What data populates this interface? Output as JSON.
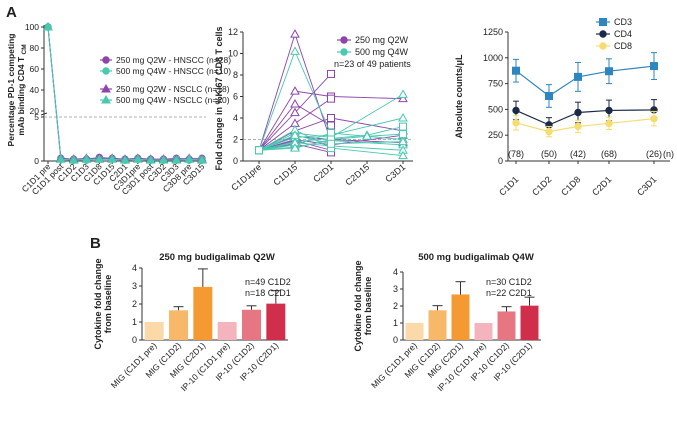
{
  "panel_labels": {
    "a": "A",
    "b": "B"
  },
  "chart_data": [
    {
      "id": "ro",
      "type": "line",
      "title": "",
      "ylabel": "Percentage PD-1 competing mAb binding CD4 T",
      "ylabel_sub": "CM",
      "ylim": [
        0,
        100
      ],
      "yticks": [
        0,
        5,
        20,
        40,
        60,
        80,
        100
      ],
      "reference_line": 5,
      "categories": [
        "C1D1 pre",
        "C1D1 post",
        "C1D2",
        "C1D3",
        "C1D8",
        "C1D15",
        "C2D1",
        "C3D1pre",
        "C3D1 post",
        "C3D2",
        "C3D3",
        "C3D8 pre",
        "C3D15"
      ],
      "series": [
        {
          "name": "250 mg Q2W - HNSCC (n=28)",
          "color": "#8e44ad",
          "marker": "circle",
          "values": [
            100,
            0.3,
            0.2,
            0.2,
            0.4,
            0.3,
            0.2,
            0.3,
            0.2,
            0.2,
            0.3,
            0.2,
            0.3
          ]
        },
        {
          "name": "500 mg Q4W - HNSCC (n=10)",
          "color": "#48c9b0",
          "marker": "circle",
          "values": [
            100,
            0.2,
            0.1,
            0.1,
            0.2,
            0.2,
            0.1,
            0.2,
            0.1,
            0.1,
            0.2,
            0.1,
            0.2
          ]
        },
        {
          "name": "250 mg Q2W - NSCLC (n=18)",
          "color": "#8e44ad",
          "marker": "triangle",
          "values": [
            100,
            0.3,
            0.2,
            0.3,
            0.3,
            0.3,
            0.2,
            0.3,
            0.2,
            0.2,
            0.2,
            0.3,
            0.2
          ]
        },
        {
          "name": "500 mg Q4W - NSCLC (n=20)",
          "color": "#48c9b0",
          "marker": "triangle",
          "values": [
            100,
            0.2,
            0.1,
            0.2,
            0.2,
            0.2,
            0.1,
            0.2,
            0.1,
            0.1,
            0.1,
            0.2,
            0.1
          ]
        }
      ]
    },
    {
      "id": "ki67",
      "type": "line",
      "ylabel": "Fold change in %Ki67 CD8 T cells",
      "ylim": [
        0,
        12
      ],
      "yticks": [
        0,
        2,
        4,
        6,
        8,
        10,
        12
      ],
      "reference_line": 2,
      "categories": [
        "C1D1pre",
        "C1D15",
        "C2D1",
        "C2D15",
        "C3D1"
      ],
      "legend": [
        {
          "name": "250 mg Q2W",
          "color": "#8e44ad"
        },
        {
          "name": "500 mg Q4W",
          "color": "#48c9b0"
        }
      ],
      "note": "n=23 of 49 patients",
      "series": [
        {
          "group": "250 mg Q2W",
          "values": [
            1,
            11.8,
            1.8,
            null,
            null
          ]
        },
        {
          "group": "250 mg Q2W",
          "values": [
            1,
            6.5,
            6.0,
            null,
            5.8
          ]
        },
        {
          "group": "250 mg Q2W",
          "values": [
            1,
            5.3,
            3.3,
            null,
            null
          ]
        },
        {
          "group": "250 mg Q2W",
          "values": [
            1,
            4.5,
            8.1,
            null,
            null
          ]
        },
        {
          "group": "250 mg Q2W",
          "values": [
            1,
            3.5,
            5.8,
            null,
            null
          ]
        },
        {
          "group": "250 mg Q2W",
          "values": [
            1,
            2.8,
            4.0,
            null,
            2.8
          ]
        },
        {
          "group": "250 mg Q2W",
          "values": [
            1,
            2.3,
            2.0,
            null,
            1.7
          ]
        },
        {
          "group": "250 mg Q2W",
          "values": [
            1,
            1.9,
            1.0,
            null,
            null
          ]
        },
        {
          "group": "250 mg Q2W",
          "values": [
            1,
            1.6,
            0.8,
            null,
            null
          ]
        },
        {
          "group": "250 mg Q2W",
          "values": [
            1,
            2.0,
            1.5,
            null,
            2.4
          ]
        },
        {
          "group": "500 mg Q4W",
          "values": [
            1,
            10.2,
            2.5,
            null,
            null
          ]
        },
        {
          "group": "500 mg Q4W",
          "values": [
            1,
            2.6,
            2.2,
            null,
            6.2
          ]
        },
        {
          "group": "500 mg Q4W",
          "values": [
            1,
            2.2,
            2.4,
            null,
            4.0
          ]
        },
        {
          "group": "500 mg Q4W",
          "values": [
            1,
            1.8,
            2.1,
            2.4,
            3.2
          ]
        },
        {
          "group": "500 mg Q4W",
          "values": [
            1,
            1.5,
            2.6,
            null,
            2.0
          ]
        },
        {
          "group": "500 mg Q4W",
          "values": [
            1,
            1.3,
            1.9,
            null,
            1.5
          ]
        },
        {
          "group": "500 mg Q4W",
          "values": [
            1,
            1.7,
            1.4,
            null,
            1.0
          ]
        },
        {
          "group": "500 mg Q4W",
          "values": [
            1,
            2.9,
            1.2,
            null,
            0.5
          ]
        },
        {
          "group": "500 mg Q4W",
          "values": [
            1,
            1.2,
            2.0,
            2.3,
            2.5
          ]
        },
        {
          "group": "500 mg Q4W",
          "values": [
            1,
            2.4,
            1.6,
            null,
            1.8
          ]
        }
      ]
    },
    {
      "id": "counts",
      "type": "line",
      "ylabel": "Absolute counts/μL",
      "ylim": [
        0,
        1250
      ],
      "yticks": [
        0,
        250,
        500,
        750,
        1000,
        1250
      ],
      "categories": [
        "C1D1",
        "C1D2",
        "C1D8",
        "C2D1",
        "C3D1"
      ],
      "n_labels": [
        "(78)",
        "(50)",
        "(42)",
        "(68)",
        "(26)"
      ],
      "n_suffix": "(n)",
      "series": [
        {
          "name": "CD3",
          "color": "#2e86c1",
          "marker": "square",
          "values": [
            875,
            630,
            815,
            870,
            920
          ],
          "err": [
            110,
            110,
            140,
            120,
            130
          ]
        },
        {
          "name": "CD4",
          "color": "#1b2a49",
          "marker": "circle",
          "values": [
            490,
            350,
            470,
            490,
            495
          ],
          "err": [
            90,
            70,
            100,
            100,
            100
          ]
        },
        {
          "name": "CD8",
          "color": "#f7dc6f",
          "marker": "circle",
          "values": [
            370,
            285,
            335,
            365,
            410
          ],
          "err": [
            70,
            50,
            60,
            60,
            70
          ]
        }
      ]
    },
    {
      "id": "cyt250",
      "type": "bar",
      "title": "250 mg budigalimab Q2W",
      "ylabel": "Cytokine fold change from baseline",
      "ylim": [
        0,
        4
      ],
      "yticks": [
        0,
        1,
        2,
        3,
        4
      ],
      "note_lines": [
        "n=49 C1D2",
        "n=18 C2D1"
      ],
      "categories": [
        "MIG (C1D1 pre)",
        "MIG (C1D2)",
        "MIG (C2D1)",
        "IP-10 (C1D1 pre)",
        "IP-10 (C1D2)",
        "IP-10 (C2D1)"
      ],
      "values": [
        1.0,
        1.65,
        2.95,
        1.0,
        1.68,
        2.02
      ],
      "err": [
        0,
        0.2,
        1.0,
        0,
        0.22,
        0.72
      ],
      "colors": [
        "#fcd9a8",
        "#f8b86a",
        "#f59a33",
        "#f3b4bd",
        "#e67681",
        "#d02e4b"
      ]
    },
    {
      "id": "cyt500",
      "type": "bar",
      "title": "500 mg budigalimab Q4W",
      "ylabel": "Cytokine fold change from baseline",
      "ylim": [
        0,
        4
      ],
      "yticks": [
        0,
        1,
        2,
        3,
        4
      ],
      "note_lines": [
        "n=30 C1D2",
        "n=22 C2D1"
      ],
      "categories": [
        "MIG (C1D1 pre)",
        "MIG (C1D2)",
        "MIG (C2D1)",
        "IP-10 (C1D1 pre)",
        "IP-10 (C1D2)",
        "IP-10 (C2D1)"
      ],
      "values": [
        1.0,
        1.75,
        2.68,
        1.0,
        1.68,
        2.02
      ],
      "err": [
        0,
        0.27,
        0.75,
        0,
        0.28,
        0.5
      ],
      "colors": [
        "#fcd9a8",
        "#f8b86a",
        "#f59a33",
        "#f3b4bd",
        "#e67681",
        "#d02e4b"
      ]
    }
  ]
}
